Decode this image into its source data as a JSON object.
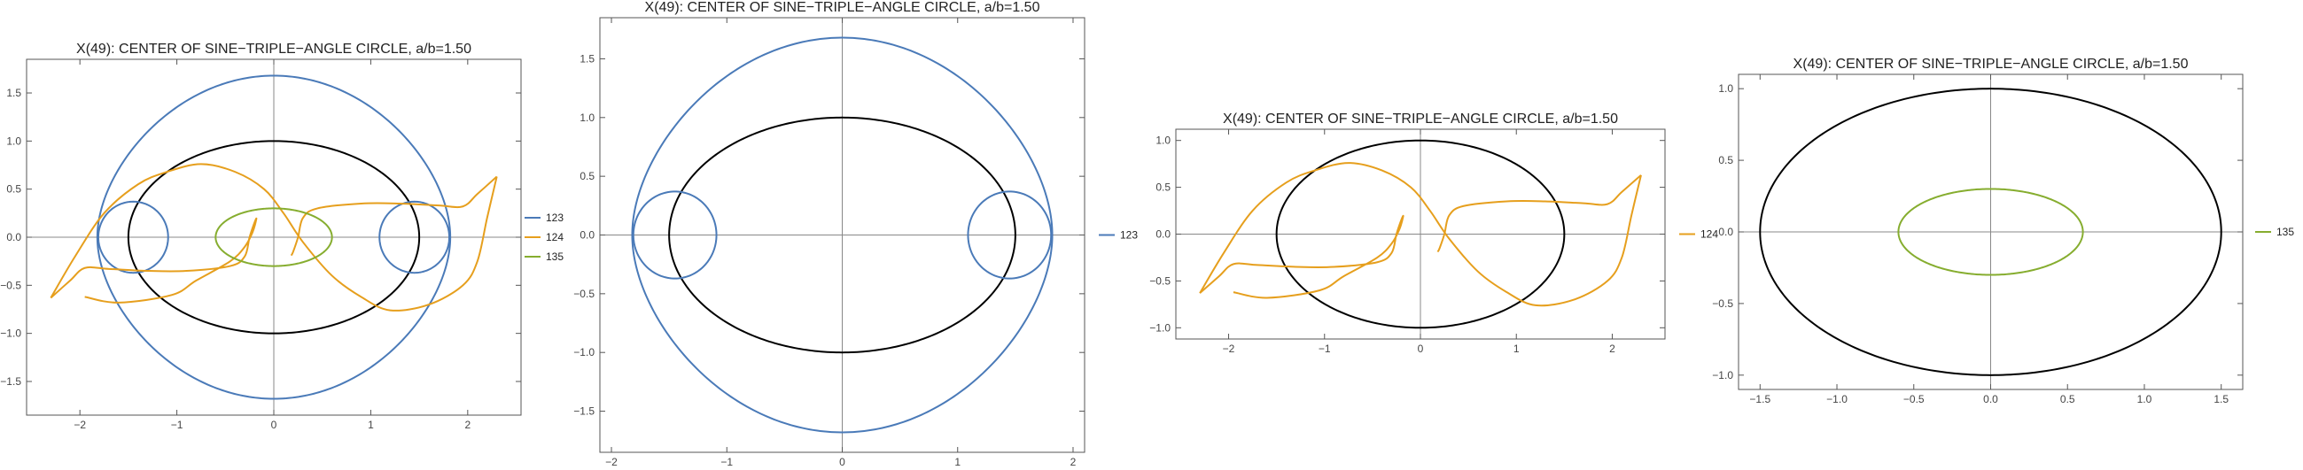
{
  "chart_data": [
    {
      "type": "line",
      "title": "X(49): CENTER OF SINE−TRIPLE−ANGLE CIRCLE, a/b=1.50",
      "xlim": [
        -2.55,
        2.55
      ],
      "ylim": [
        -1.85,
        1.85
      ],
      "xticks": [
        -2,
        -1,
        0,
        1,
        2
      ],
      "xtick_labels": [
        "−2",
        "−1",
        "0",
        "1",
        "2"
      ],
      "yticks": [
        -1.5,
        -1.0,
        -0.5,
        0.0,
        0.5,
        1.0,
        1.5
      ],
      "ytick_labels": [
        "−1.5",
        "−1.0",
        "−0.5",
        "0.0",
        "0.5",
        "1.0",
        "1.5"
      ],
      "series": [
        {
          "name": "123",
          "color": "#4a7ab8",
          "shape": "limacon"
        },
        {
          "name": "124",
          "color": "#e69f1d",
          "shape": "curl"
        },
        {
          "name": "135",
          "color": "#86ad2f",
          "shape": "ellipse",
          "a": 0.6,
          "b": 0.3
        }
      ],
      "reference_ellipse": {
        "a": 1.5,
        "b": 1.0,
        "color": "#000000"
      },
      "legend": "right"
    },
    {
      "type": "line",
      "title": "X(49): CENTER OF SINE−TRIPLE−ANGLE CIRCLE, a/b=1.50",
      "xlim": [
        -2.1,
        2.1
      ],
      "ylim": [
        -1.85,
        1.85
      ],
      "xticks": [
        -2,
        -1,
        0,
        1,
        2
      ],
      "xtick_labels": [
        "−2",
        "−1",
        "0",
        "1",
        "2"
      ],
      "yticks": [
        -1.5,
        -1.0,
        -0.5,
        0.0,
        0.5,
        1.0,
        1.5
      ],
      "ytick_labels": [
        "−1.5",
        "−1.0",
        "−0.5",
        "0.0",
        "0.5",
        "1.0",
        "1.5"
      ],
      "series": [
        {
          "name": "123",
          "color": "#4a7ab8",
          "shape": "limacon"
        }
      ],
      "reference_ellipse": {
        "a": 1.5,
        "b": 1.0,
        "color": "#000000"
      },
      "legend": "right"
    },
    {
      "type": "line",
      "title": "X(49): CENTER OF SINE−TRIPLE−ANGLE CIRCLE, a/b=1.50",
      "xlim": [
        -2.55,
        2.55
      ],
      "ylim": [
        -1.12,
        1.12
      ],
      "xticks": [
        -2,
        -1,
        0,
        1,
        2
      ],
      "xtick_labels": [
        "−2",
        "−1",
        "0",
        "1",
        "2"
      ],
      "yticks": [
        -1.0,
        -0.5,
        0.0,
        0.5,
        1.0
      ],
      "ytick_labels": [
        "−1.0",
        "−0.5",
        "0.0",
        "0.5",
        "1.0"
      ],
      "series": [
        {
          "name": "124",
          "color": "#e69f1d",
          "shape": "curl"
        }
      ],
      "reference_ellipse": {
        "a": 1.5,
        "b": 1.0,
        "color": "#000000"
      },
      "legend": "right"
    },
    {
      "type": "line",
      "title": "X(49): CENTER OF SINE−TRIPLE−ANGLE CIRCLE, a/b=1.50",
      "xlim": [
        -1.64,
        1.64
      ],
      "ylim": [
        -1.1,
        1.1
      ],
      "xticks": [
        -1.5,
        -1.0,
        -0.5,
        0.0,
        0.5,
        1.0,
        1.5
      ],
      "xtick_labels": [
        "−1.5",
        "−1.0",
        "−0.5",
        "0.0",
        "0.5",
        "1.0",
        "1.5"
      ],
      "yticks": [
        -1.0,
        -0.5,
        0.0,
        0.5,
        1.0
      ],
      "ytick_labels": [
        "−1.0",
        "−0.5",
        "0.0",
        "0.5",
        "1.0"
      ],
      "series": [
        {
          "name": "135",
          "color": "#86ad2f",
          "shape": "ellipse",
          "a": 0.6,
          "b": 0.3
        }
      ],
      "reference_ellipse": {
        "a": 1.5,
        "b": 1.0,
        "color": "#000000"
      },
      "legend": "right"
    }
  ]
}
